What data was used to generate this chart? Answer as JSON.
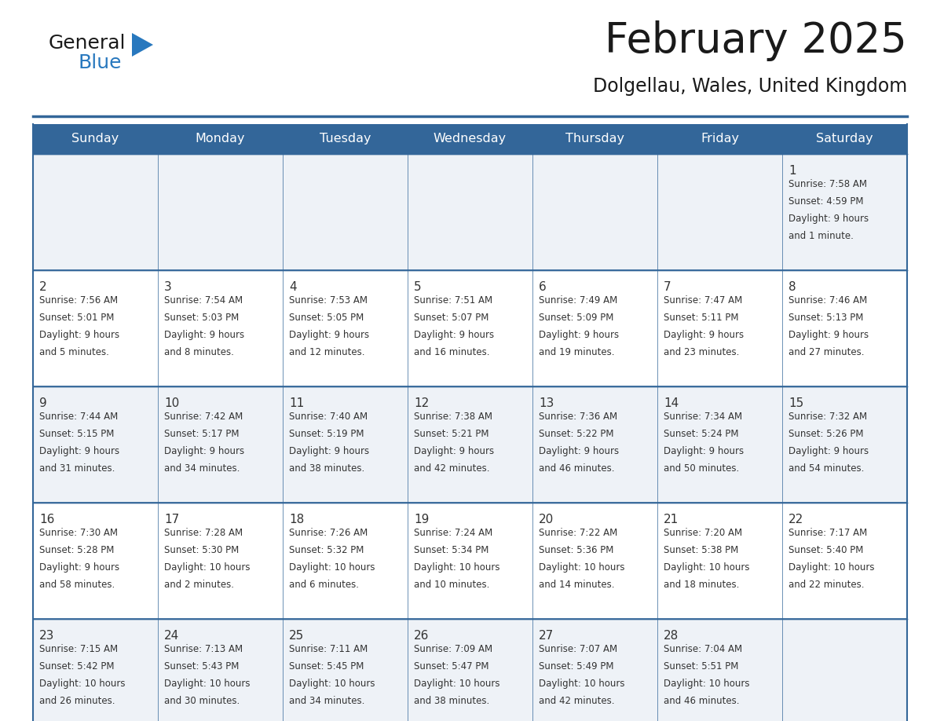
{
  "title": "February 2025",
  "subtitle": "Dolgellau, Wales, United Kingdom",
  "days_of_week": [
    "Sunday",
    "Monday",
    "Tuesday",
    "Wednesday",
    "Thursday",
    "Friday",
    "Saturday"
  ],
  "header_bg": "#336699",
  "header_text": "#ffffff",
  "cell_bg_odd": "#eef2f7",
  "cell_bg_even": "#ffffff",
  "border_color": "#336699",
  "title_color": "#1a1a1a",
  "subtitle_color": "#1a1a1a",
  "text_color": "#333333",
  "logo_general_color": "#1a1a1a",
  "logo_blue_color": "#2878be",
  "logo_tri_color": "#2878be",
  "calendar_data": [
    [
      null,
      null,
      null,
      null,
      null,
      null,
      {
        "day": 1,
        "sunrise": "7:58 AM",
        "sunset": "4:59 PM",
        "daylight": "9 hours and 1 minute."
      }
    ],
    [
      {
        "day": 2,
        "sunrise": "7:56 AM",
        "sunset": "5:01 PM",
        "daylight": "9 hours and 5 minutes."
      },
      {
        "day": 3,
        "sunrise": "7:54 AM",
        "sunset": "5:03 PM",
        "daylight": "9 hours and 8 minutes."
      },
      {
        "day": 4,
        "sunrise": "7:53 AM",
        "sunset": "5:05 PM",
        "daylight": "9 hours and 12 minutes."
      },
      {
        "day": 5,
        "sunrise": "7:51 AM",
        "sunset": "5:07 PM",
        "daylight": "9 hours and 16 minutes."
      },
      {
        "day": 6,
        "sunrise": "7:49 AM",
        "sunset": "5:09 PM",
        "daylight": "9 hours and 19 minutes."
      },
      {
        "day": 7,
        "sunrise": "7:47 AM",
        "sunset": "5:11 PM",
        "daylight": "9 hours and 23 minutes."
      },
      {
        "day": 8,
        "sunrise": "7:46 AM",
        "sunset": "5:13 PM",
        "daylight": "9 hours and 27 minutes."
      }
    ],
    [
      {
        "day": 9,
        "sunrise": "7:44 AM",
        "sunset": "5:15 PM",
        "daylight": "9 hours and 31 minutes."
      },
      {
        "day": 10,
        "sunrise": "7:42 AM",
        "sunset": "5:17 PM",
        "daylight": "9 hours and 34 minutes."
      },
      {
        "day": 11,
        "sunrise": "7:40 AM",
        "sunset": "5:19 PM",
        "daylight": "9 hours and 38 minutes."
      },
      {
        "day": 12,
        "sunrise": "7:38 AM",
        "sunset": "5:21 PM",
        "daylight": "9 hours and 42 minutes."
      },
      {
        "day": 13,
        "sunrise": "7:36 AM",
        "sunset": "5:22 PM",
        "daylight": "9 hours and 46 minutes."
      },
      {
        "day": 14,
        "sunrise": "7:34 AM",
        "sunset": "5:24 PM",
        "daylight": "9 hours and 50 minutes."
      },
      {
        "day": 15,
        "sunrise": "7:32 AM",
        "sunset": "5:26 PM",
        "daylight": "9 hours and 54 minutes."
      }
    ],
    [
      {
        "day": 16,
        "sunrise": "7:30 AM",
        "sunset": "5:28 PM",
        "daylight": "9 hours and 58 minutes."
      },
      {
        "day": 17,
        "sunrise": "7:28 AM",
        "sunset": "5:30 PM",
        "daylight": "10 hours and 2 minutes."
      },
      {
        "day": 18,
        "sunrise": "7:26 AM",
        "sunset": "5:32 PM",
        "daylight": "10 hours and 6 minutes."
      },
      {
        "day": 19,
        "sunrise": "7:24 AM",
        "sunset": "5:34 PM",
        "daylight": "10 hours and 10 minutes."
      },
      {
        "day": 20,
        "sunrise": "7:22 AM",
        "sunset": "5:36 PM",
        "daylight": "10 hours and 14 minutes."
      },
      {
        "day": 21,
        "sunrise": "7:20 AM",
        "sunset": "5:38 PM",
        "daylight": "10 hours and 18 minutes."
      },
      {
        "day": 22,
        "sunrise": "7:17 AM",
        "sunset": "5:40 PM",
        "daylight": "10 hours and 22 minutes."
      }
    ],
    [
      {
        "day": 23,
        "sunrise": "7:15 AM",
        "sunset": "5:42 PM",
        "daylight": "10 hours and 26 minutes."
      },
      {
        "day": 24,
        "sunrise": "7:13 AM",
        "sunset": "5:43 PM",
        "daylight": "10 hours and 30 minutes."
      },
      {
        "day": 25,
        "sunrise": "7:11 AM",
        "sunset": "5:45 PM",
        "daylight": "10 hours and 34 minutes."
      },
      {
        "day": 26,
        "sunrise": "7:09 AM",
        "sunset": "5:47 PM",
        "daylight": "10 hours and 38 minutes."
      },
      {
        "day": 27,
        "sunrise": "7:07 AM",
        "sunset": "5:49 PM",
        "daylight": "10 hours and 42 minutes."
      },
      {
        "day": 28,
        "sunrise": "7:04 AM",
        "sunset": "5:51 PM",
        "daylight": "10 hours and 46 minutes."
      },
      null
    ]
  ]
}
